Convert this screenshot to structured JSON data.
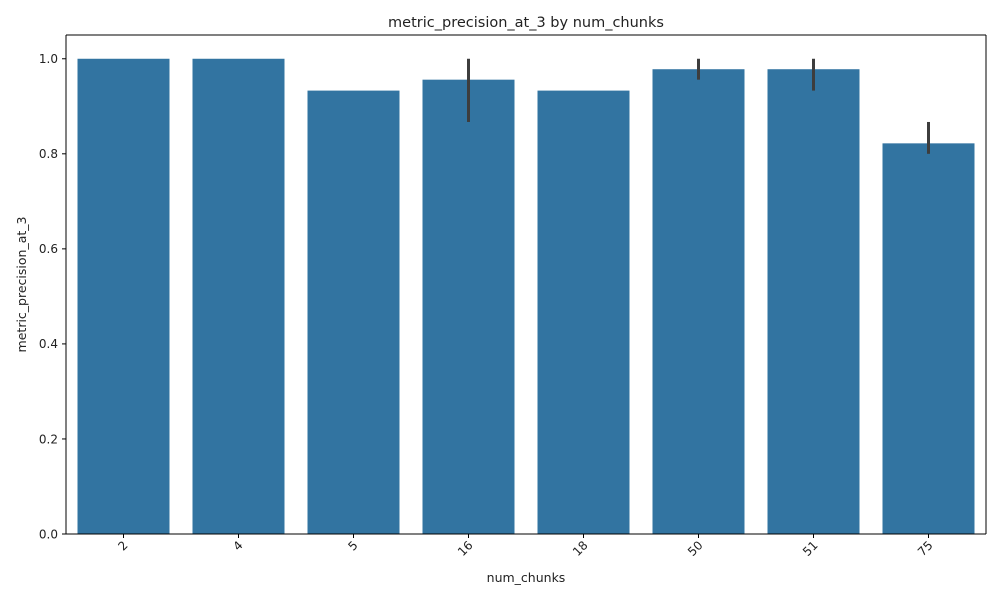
{
  "chart_data": {
    "type": "bar",
    "title": "metric_precision_at_3 by num_chunks",
    "xlabel": "num_chunks",
    "ylabel": "metric_precision_at_3",
    "categories": [
      "2",
      "4",
      "5",
      "16",
      "18",
      "50",
      "51",
      "75"
    ],
    "values": [
      1.0,
      1.0,
      0.933,
      0.956,
      0.933,
      0.978,
      0.978,
      0.822
    ],
    "error_bars": [
      null,
      null,
      null,
      [
        0.867,
        1.0
      ],
      null,
      [
        0.956,
        1.0
      ],
      [
        0.933,
        1.0
      ],
      [
        0.8,
        0.867
      ]
    ],
    "ylim": [
      0,
      1.05
    ],
    "yticks": [
      "0.0",
      "0.2",
      "0.4",
      "0.6",
      "0.8",
      "1.0"
    ],
    "grid": false,
    "legend": "none",
    "bar_color": "#3274a1",
    "errorbar_color": "#3d3d3d"
  }
}
